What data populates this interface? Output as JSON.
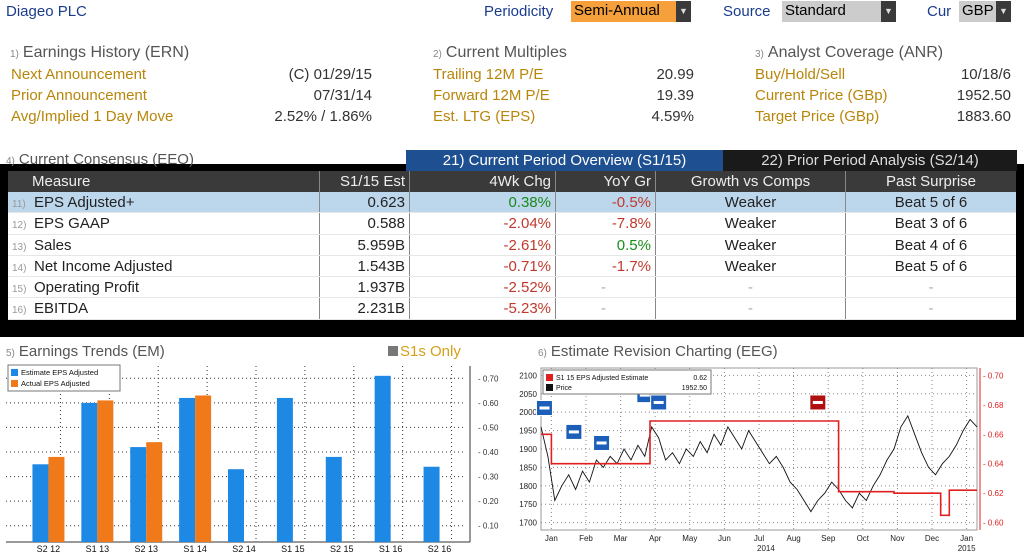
{
  "header": {
    "company": "Diageo PLC",
    "periodicity_label": "Periodicity",
    "periodicity_value": "Semi-Annual",
    "source_label": "Source",
    "source_value": "Standard",
    "cur_label": "Cur",
    "cur_value": "GBP"
  },
  "earnings_history": {
    "num": "1)",
    "title": "Earnings History (ERN)",
    "rows": [
      {
        "label": "Next Announcement",
        "value": "(C)  01/29/15"
      },
      {
        "label": "Prior Announcement",
        "value": "07/31/14"
      },
      {
        "label": "Avg/Implied 1 Day Move",
        "value": "2.52% / 1.86%"
      }
    ]
  },
  "current_multiples": {
    "num": "2)",
    "title": "Current Multiples",
    "rows": [
      {
        "label": "Trailing 12M P/E",
        "value": "20.99"
      },
      {
        "label": "Forward 12M P/E",
        "value": "19.39"
      },
      {
        "label": "Est. LTG (EPS)",
        "value": "4.59%"
      }
    ]
  },
  "analyst_coverage": {
    "num": "3)",
    "title": "Analyst Coverage (ANR)",
    "rows": [
      {
        "label": "Buy/Hold/Sell",
        "value": "10/18/6"
      },
      {
        "label": "Current Price (GBp)",
        "value": "1952.50"
      },
      {
        "label": "Target Price (GBp)",
        "value": "1883.60"
      }
    ]
  },
  "consensus": {
    "num": "4)",
    "title": "Current Consensus (EEO)",
    "tab_current": "21) Current Period Overview (S1/15)",
    "tab_prior": "22) Prior Period Analysis (S2/14)",
    "columns": [
      "Measure",
      "S1/15 Est",
      "4Wk Chg",
      "YoY Gr",
      "Growth vs Comps",
      "Past Surprise"
    ],
    "rows": [
      {
        "n": "11)",
        "measure": "EPS Adjusted+",
        "est": "0.623",
        "chg": "0.38%",
        "chg_sign": "pos",
        "yoy": "-0.5%",
        "yoy_sign": "neg",
        "comps": "Weaker",
        "surprise": "Beat 5 of 6"
      },
      {
        "n": "12)",
        "measure": "EPS GAAP",
        "est": "0.588",
        "chg": "-2.04%",
        "chg_sign": "neg",
        "yoy": "-7.8%",
        "yoy_sign": "neg",
        "comps": "Weaker",
        "surprise": "Beat 3 of 6"
      },
      {
        "n": "13)",
        "measure": "Sales",
        "est": "5.959B",
        "chg": "-2.61%",
        "chg_sign": "neg",
        "yoy": "0.5%",
        "yoy_sign": "pos",
        "comps": "Weaker",
        "surprise": "Beat 4 of 6"
      },
      {
        "n": "14)",
        "measure": "Net Income Adjusted",
        "est": "1.543B",
        "chg": "-0.71%",
        "chg_sign": "neg",
        "yoy": "-1.7%",
        "yoy_sign": "neg",
        "comps": "Weaker",
        "surprise": "Beat 5 of 6"
      },
      {
        "n": "15)",
        "measure": "Operating Profit",
        "est": "1.937B",
        "chg": "-2.52%",
        "chg_sign": "neg",
        "yoy": "-",
        "yoy_sign": "dash",
        "comps": "-",
        "surprise": "-"
      },
      {
        "n": "16)",
        "measure": "EBITDA",
        "est": "2.231B",
        "chg": "-5.23%",
        "chg_sign": "neg",
        "yoy": "-",
        "yoy_sign": "dash",
        "comps": "-",
        "surprise": "-"
      }
    ]
  },
  "earnings_trends": {
    "num": "5)",
    "title": "Earnings Trends (EM)",
    "toggle": "S1s Only"
  },
  "revision": {
    "num": "6)",
    "title": "Estimate Revision Charting (EEG)"
  },
  "colors": {
    "estimate": "#1e88e5",
    "actual": "#f07a1a",
    "price": "#111111",
    "est_line": "#e02020"
  },
  "chart_data": [
    {
      "type": "bar",
      "categories": [
        "S2 12",
        "S1 13",
        "S2 13",
        "S1 14",
        "S2 14",
        "S1 15",
        "S2 15",
        "S1 16",
        "S2 16"
      ],
      "series": [
        {
          "name": "Estimate EPS Adjusted",
          "values": [
            0.35,
            0.6,
            0.42,
            0.62,
            0.33,
            0.62,
            0.38,
            0.71,
            0.34
          ]
        },
        {
          "name": "Actual EPS Adjusted",
          "values": [
            0.38,
            0.61,
            0.44,
            0.63,
            null,
            null,
            null,
            null,
            null
          ]
        }
      ],
      "y_ticks": [
        "0.10",
        "0.20",
        "0.30",
        "0.40",
        "0.50",
        "0.60",
        "0.70"
      ],
      "ylim": [
        0.05,
        0.75
      ],
      "grid": true,
      "legend": "top-left"
    },
    {
      "type": "line",
      "legend_entries": [
        {
          "name": "S1 15 EPS Adjusted Estimate",
          "value": "0.62"
        },
        {
          "name": "Price",
          "value": "1952.50"
        }
      ],
      "x_ticks": [
        "Jan",
        "Feb",
        "Mar",
        "Apr",
        "May",
        "Jun",
        "Jul",
        "Aug",
        "Sep",
        "Oct",
        "Nov",
        "Dec",
        "Jan"
      ],
      "x_years": [
        "2014",
        "2015"
      ],
      "y_left_ticks": [
        "1700",
        "1750",
        "1800",
        "1850",
        "1900",
        "1950",
        "2000",
        "2050",
        "2100"
      ],
      "y_left_range": [
        1680,
        2120
      ],
      "y_right_ticks": [
        "0.60",
        "0.62",
        "0.64",
        "0.66",
        "0.68",
        "0.70"
      ],
      "y_right_range": [
        0.595,
        0.705
      ],
      "price": {
        "x_months": [
          0,
          0.2,
          0.4,
          0.6,
          0.8,
          1.0,
          1.2,
          1.4,
          1.6,
          1.8,
          2.0,
          2.2,
          2.4,
          2.6,
          2.8,
          3.0,
          3.2,
          3.4,
          3.6,
          3.8,
          4.0,
          4.2,
          4.4,
          4.6,
          4.8,
          5.0,
          5.2,
          5.4,
          5.6,
          5.8,
          6.0,
          6.2,
          6.4,
          6.6,
          6.8,
          7.0,
          7.2,
          7.4,
          7.6,
          7.8,
          8.0,
          8.2,
          8.4,
          8.6,
          8.8,
          9.0,
          9.2,
          9.4,
          9.6,
          9.8,
          10.0,
          10.2,
          10.4,
          10.6,
          10.8,
          11.0,
          11.2,
          11.4,
          11.6,
          11.8,
          12.0,
          12.2,
          12.4,
          12.6
        ],
        "values": [
          1960,
          1880,
          1760,
          1800,
          1830,
          1790,
          1840,
          1810,
          1870,
          1850,
          1880,
          1860,
          1900,
          1870,
          1910,
          1880,
          1960,
          1930,
          1870,
          1890,
          1860,
          1900,
          1880,
          1920,
          1890,
          1940,
          1910,
          1960,
          1930,
          1900,
          1950,
          1920,
          1890,
          1860,
          1880,
          1850,
          1810,
          1790,
          1760,
          1730,
          1760,
          1780,
          1810,
          1790,
          1760,
          1740,
          1780,
          1760,
          1800,
          1830,
          1870,
          1900,
          1960,
          1990,
          1940,
          1890,
          1850,
          1830,
          1860,
          1880,
          1910,
          1950,
          1980,
          1960
        ]
      },
      "estimate": {
        "x_months": [
          0,
          0.3,
          0.3,
          3.0,
          3.0,
          3.15,
          3.15,
          8.6,
          8.6,
          10.2,
          10.2,
          11.55,
          11.55,
          11.8,
          11.8,
          12.2,
          12.2,
          12.6
        ],
        "values": [
          0.66,
          0.66,
          0.64,
          0.64,
          0.64,
          0.64,
          0.669,
          0.669,
          0.621,
          0.621,
          0.62,
          0.62,
          0.605,
          0.605,
          0.622,
          0.622,
          0.622,
          0.622
        ]
      },
      "event_markers": [
        {
          "x_month": 0.1,
          "price": 2010
        },
        {
          "x_month": 0.95,
          "price": 1945
        },
        {
          "x_month": 1.75,
          "price": 1915
        },
        {
          "x_month": 3.0,
          "price": 2045
        },
        {
          "x_month": 3.4,
          "price": 2025
        },
        {
          "x_month": 8.0,
          "price": 2025
        }
      ]
    }
  ]
}
